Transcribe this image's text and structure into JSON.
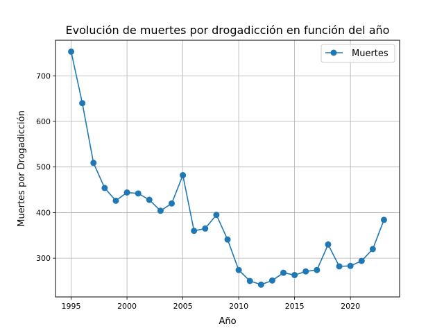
{
  "chart_data": {
    "type": "line",
    "title": "Evolución de muertes por drogadicción en función del año",
    "xlabel": "Año",
    "ylabel": "Muertes por Drogadicción",
    "xlim": [
      1993.6,
      2024.4
    ],
    "ylim": [
      215,
      778
    ],
    "xticks": [
      1995,
      2000,
      2005,
      2010,
      2015,
      2020
    ],
    "xtick_labels": [
      "1995",
      "2000",
      "2005",
      "2010",
      "2015",
      "2020"
    ],
    "yticks": [
      300,
      400,
      500,
      600,
      700
    ],
    "ytick_labels": [
      "300",
      "400",
      "500",
      "600",
      "700"
    ],
    "grid": true,
    "legend_position": "top-right",
    "series": [
      {
        "name": "Muertes",
        "color": "#1f77b4",
        "marker": "circle",
        "x": [
          1995,
          1996,
          1997,
          1998,
          1999,
          2000,
          2001,
          2002,
          2003,
          2004,
          2005,
          2006,
          2007,
          2008,
          2009,
          2010,
          2011,
          2012,
          2013,
          2014,
          2015,
          2016,
          2017,
          2018,
          2019,
          2020,
          2021,
          2022,
          2023
        ],
        "y": [
          753,
          640,
          509,
          454,
          426,
          444,
          442,
          428,
          404,
          420,
          482,
          360,
          365,
          395,
          341,
          274,
          250,
          242,
          251,
          268,
          263,
          271,
          274,
          330,
          282,
          283,
          294,
          320,
          384
        ]
      }
    ]
  }
}
